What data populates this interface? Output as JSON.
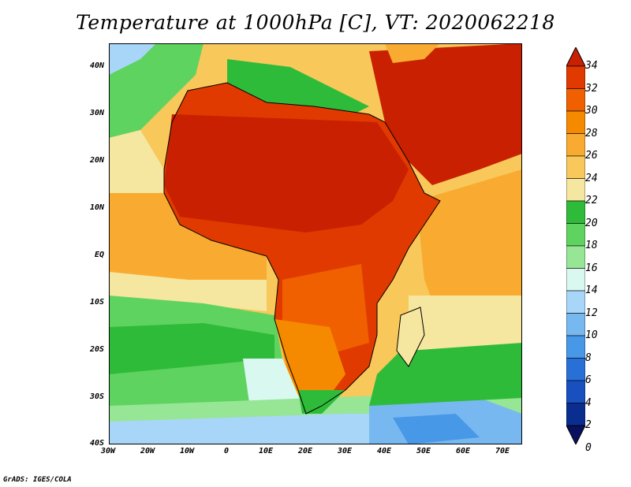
{
  "title": "Temperature at 1000hPa [C], VT: 2020062218",
  "credit": "GrADS: IGES/COLA",
  "map": {
    "region": "Africa",
    "variable": "Temperature at 1000hPa",
    "units": "C",
    "valid_time": "2020062218",
    "lon_range": [
      -30,
      75
    ],
    "lat_range": [
      -40,
      45
    ]
  },
  "lat_ticks": [
    "40N",
    "30N",
    "20N",
    "10N",
    "EQ",
    "10S",
    "20S",
    "30S",
    "40S"
  ],
  "lon_ticks": [
    "30W",
    "20W",
    "10W",
    "0",
    "10E",
    "20E",
    "30E",
    "40E",
    "50E",
    "60E",
    "70E"
  ],
  "colorbar": {
    "labels": [
      "34",
      "32",
      "30",
      "28",
      "26",
      "24",
      "22",
      "20",
      "18",
      "16",
      "14",
      "12",
      "10",
      "8",
      "6",
      "4",
      "2",
      "0"
    ],
    "colors": [
      "#c82000",
      "#e03a00",
      "#f06000",
      "#f58a00",
      "#f8ab30",
      "#f8c85a",
      "#f5e6a0",
      "#2fbb3a",
      "#5fd35f",
      "#96e696",
      "#d8f8f0",
      "#a8d6f8",
      "#78b8f0",
      "#4898e8",
      "#2870d8",
      "#1850c0",
      "#0a2e90",
      "#0a1060"
    ]
  }
}
